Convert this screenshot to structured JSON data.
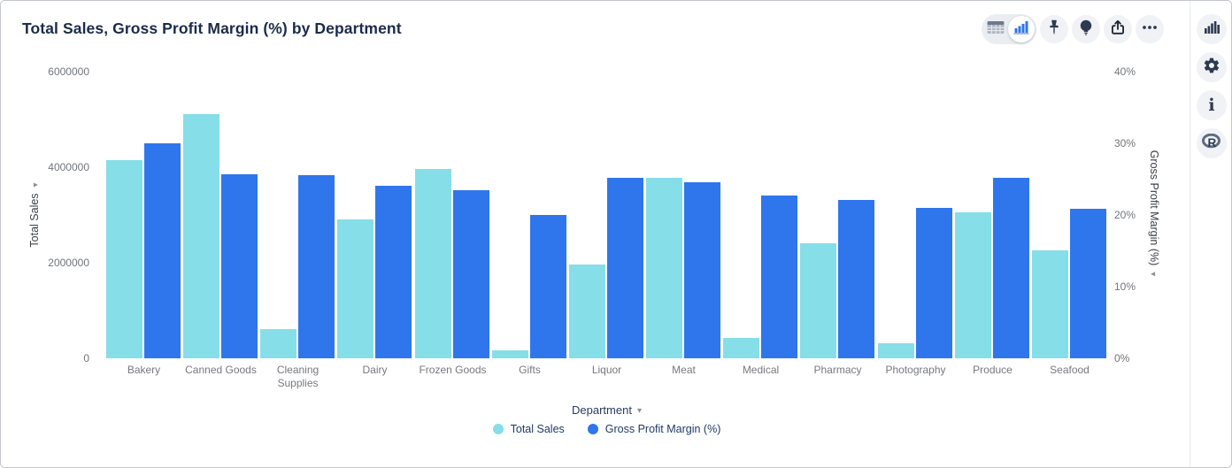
{
  "header": {
    "title": "Total Sales, Gross Profit Margin (%) by Department"
  },
  "toolbar": {
    "buttons": [
      {
        "id": "view-table",
        "icon": "table-icon",
        "selected": false
      },
      {
        "id": "view-chart",
        "icon": "bar-chart-icon",
        "selected": true
      },
      {
        "id": "pin",
        "icon": "pin-icon"
      },
      {
        "id": "insights",
        "icon": "lightbulb-icon"
      },
      {
        "id": "export",
        "icon": "share-icon"
      },
      {
        "id": "more",
        "icon": "ellipsis-icon"
      }
    ]
  },
  "sidebar": {
    "buttons": [
      {
        "id": "charts",
        "icon": "bar-chart-icon"
      },
      {
        "id": "settings",
        "icon": "gear-icon"
      },
      {
        "id": "info",
        "icon": "info-icon"
      },
      {
        "id": "r-analytics",
        "icon": "r-logo-icon"
      }
    ]
  },
  "icons": {
    "sort_arrow": "▾",
    "dropdown_arrow": "▾"
  },
  "colors": {
    "total_sales": "#85DEE8",
    "gross_profit_margin": "#2F76EC",
    "icon_navy": "#2E3A52",
    "accent_blue": "#2E76EC"
  },
  "chart_data": {
    "type": "bar",
    "title": "Total Sales, Gross Profit Margin (%) by Department",
    "x_label": "Department",
    "grid": false,
    "legend_position": "bottom",
    "categories": [
      "Bakery",
      "Canned Goods",
      "Cleaning Supplies",
      "Dairy",
      "Frozen Goods",
      "Gifts",
      "Liquor",
      "Meat",
      "Medical",
      "Pharmacy",
      "Photography",
      "Produce",
      "Seafood"
    ],
    "series": [
      {
        "name": "Total Sales",
        "axis": "left",
        "color": "#85DEE8",
        "values": [
          4140000,
          5120000,
          610000,
          2900000,
          3960000,
          170000,
          1960000,
          3780000,
          430000,
          2400000,
          310000,
          3050000,
          2260000
        ]
      },
      {
        "name": "Gross Profit Margin (%)",
        "axis": "right",
        "color": "#2F76EC",
        "values": [
          30.0,
          25.7,
          25.6,
          24.1,
          23.4,
          20.0,
          25.2,
          24.6,
          22.7,
          22.1,
          21.0,
          25.2,
          20.9
        ]
      }
    ],
    "axes": {
      "left": {
        "label": "Total Sales",
        "min": 0,
        "max": 6000000,
        "ticks": [
          {
            "label": "6000000",
            "value": 6000000
          },
          {
            "label": "4000000",
            "value": 4000000
          },
          {
            "label": "2000000",
            "value": 2000000
          },
          {
            "label": "0",
            "value": 0
          }
        ]
      },
      "right": {
        "label": "Gross Profit Margin (%)",
        "min": 0,
        "max": 40,
        "ticks": [
          {
            "label": "40%",
            "value": 40
          },
          {
            "label": "30%",
            "value": 30
          },
          {
            "label": "20%",
            "value": 20
          },
          {
            "label": "10%",
            "value": 10
          },
          {
            "label": "0%",
            "value": 0
          }
        ]
      }
    }
  }
}
